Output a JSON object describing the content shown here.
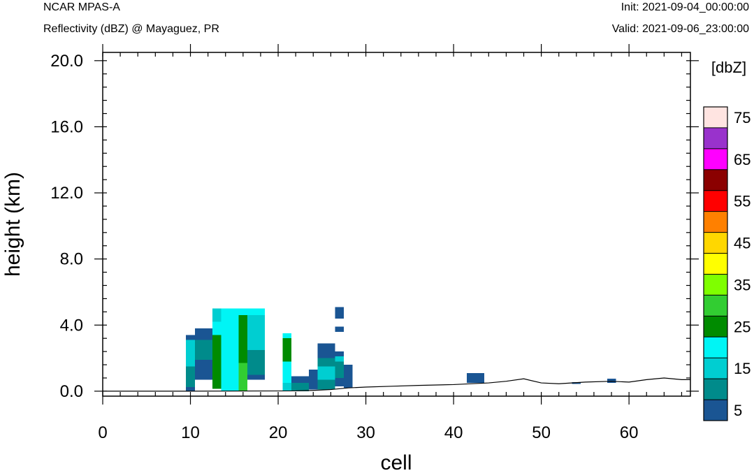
{
  "header": {
    "model": "NCAR MPAS-A",
    "field": "Reflectivity (dBZ) @ Mayaguez, PR",
    "init": "Init: 2021-09-04_00:00:00",
    "valid": "Valid: 2021-09-06_23:00:00"
  },
  "chart_data": {
    "type": "heatmap",
    "xlabel": "cell",
    "ylabel": "height (km)",
    "xlim": [
      0,
      67
    ],
    "ylim": [
      -0.3,
      20.5
    ],
    "xticks": [
      0,
      10,
      20,
      30,
      40,
      50,
      60
    ],
    "yticks": [
      0.0,
      4.0,
      8.0,
      12.0,
      16.0,
      20.0
    ],
    "ytick_labels": [
      "0.0",
      "4.0",
      "8.0",
      "12.0",
      "16.0",
      "20.0"
    ],
    "colorbar": {
      "title": "[dbZ]",
      "levels": [
        5,
        10,
        15,
        20,
        25,
        30,
        35,
        40,
        45,
        50,
        55,
        60,
        65,
        70,
        75
      ],
      "labels": [
        "5",
        "15",
        "25",
        "35",
        "45",
        "55",
        "65",
        "75"
      ],
      "colors": [
        "#1A5593",
        "#008B8B",
        "#00CED1",
        "#00F5F5",
        "#008B00",
        "#32CD32",
        "#7FFF00",
        "#FFFF00",
        "#FFD700",
        "#FF8000",
        "#FF0000",
        "#8B0000",
        "#FF00FF",
        "#9932CC",
        "#FFE4E1"
      ]
    },
    "cells": [
      {
        "x": [
          9.5,
          10.5
        ],
        "y": [
          0.0,
          0.25
        ],
        "dbz": 5
      },
      {
        "x": [
          9.5,
          10.5
        ],
        "y": [
          0.25,
          1.5
        ],
        "dbz": 10
      },
      {
        "x": [
          9.5,
          10.5
        ],
        "y": [
          1.5,
          3.1
        ],
        "dbz": 15
      },
      {
        "x": [
          9.5,
          10.5
        ],
        "y": [
          3.1,
          3.4
        ],
        "dbz": 5
      },
      {
        "x": [
          10.5,
          12.5
        ],
        "y": [
          0.7,
          1.9
        ],
        "dbz": 5
      },
      {
        "x": [
          10.5,
          12.5
        ],
        "y": [
          1.9,
          3.1
        ],
        "dbz": 10
      },
      {
        "x": [
          10.5,
          12.5
        ],
        "y": [
          3.1,
          3.8
        ],
        "dbz": 5
      },
      {
        "x": [
          12.5,
          13.5
        ],
        "y": [
          0.15,
          3.4
        ],
        "dbz": 25
      },
      {
        "x": [
          12.5,
          13.5
        ],
        "y": [
          3.4,
          4.2
        ],
        "dbz": 20
      },
      {
        "x": [
          12.5,
          13.5
        ],
        "y": [
          4.2,
          5.0
        ],
        "dbz": 15
      },
      {
        "x": [
          13.5,
          15.5
        ],
        "y": [
          0.0,
          5.0
        ],
        "dbz": 20
      },
      {
        "x": [
          15.5,
          16.5
        ],
        "y": [
          0.0,
          1.7
        ],
        "dbz": 30
      },
      {
        "x": [
          15.5,
          16.5
        ],
        "y": [
          1.7,
          4.6
        ],
        "dbz": 25
      },
      {
        "x": [
          15.5,
          16.5
        ],
        "y": [
          4.6,
          5.0
        ],
        "dbz": 20
      },
      {
        "x": [
          16.5,
          18.5
        ],
        "y": [
          0.7,
          1.0
        ],
        "dbz": 5
      },
      {
        "x": [
          16.5,
          18.5
        ],
        "y": [
          1.0,
          2.5
        ],
        "dbz": 10
      },
      {
        "x": [
          16.5,
          18.5
        ],
        "y": [
          2.5,
          4.6
        ],
        "dbz": 15
      },
      {
        "x": [
          16.5,
          18.5
        ],
        "y": [
          4.6,
          5.0
        ],
        "dbz": 20
      },
      {
        "x": [
          20.5,
          21.5
        ],
        "y": [
          0.0,
          0.5
        ],
        "dbz": 15
      },
      {
        "x": [
          20.5,
          21.5
        ],
        "y": [
          0.5,
          1.8
        ],
        "dbz": 20
      },
      {
        "x": [
          20.5,
          21.5
        ],
        "y": [
          1.8,
          3.2
        ],
        "dbz": 25
      },
      {
        "x": [
          20.5,
          21.5
        ],
        "y": [
          3.2,
          3.5
        ],
        "dbz": 20
      },
      {
        "x": [
          21.5,
          23.5
        ],
        "y": [
          0.0,
          0.5
        ],
        "dbz": 10
      },
      {
        "x": [
          21.5,
          23.5
        ],
        "y": [
          0.5,
          0.9
        ],
        "dbz": 5
      },
      {
        "x": [
          23.5,
          24.5
        ],
        "y": [
          0.1,
          1.3
        ],
        "dbz": 5
      },
      {
        "x": [
          24.5,
          26.5
        ],
        "y": [
          0.1,
          0.7
        ],
        "dbz": 10
      },
      {
        "x": [
          24.5,
          26.5
        ],
        "y": [
          0.7,
          1.5
        ],
        "dbz": 15
      },
      {
        "x": [
          24.5,
          26.5
        ],
        "y": [
          1.5,
          2.0
        ],
        "dbz": 10
      },
      {
        "x": [
          24.5,
          26.5
        ],
        "y": [
          2.0,
          2.9
        ],
        "dbz": 5
      },
      {
        "x": [
          26.5,
          27.5
        ],
        "y": [
          0.3,
          0.8
        ],
        "dbz": 5
      },
      {
        "x": [
          26.5,
          27.5
        ],
        "y": [
          0.8,
          1.8
        ],
        "dbz": 10
      },
      {
        "x": [
          26.5,
          27.5
        ],
        "y": [
          1.8,
          2.1
        ],
        "dbz": 15
      },
      {
        "x": [
          26.5,
          27.5
        ],
        "y": [
          2.1,
          2.4
        ],
        "dbz": 5
      },
      {
        "x": [
          26.5,
          27.5
        ],
        "y": [
          3.6,
          3.9
        ],
        "dbz": 5
      },
      {
        "x": [
          26.5,
          27.5
        ],
        "y": [
          4.4,
          5.1
        ],
        "dbz": 5
      },
      {
        "x": [
          27.5,
          28.5
        ],
        "y": [
          0.2,
          1.6
        ],
        "dbz": 5
      },
      {
        "x": [
          41.5,
          43.5
        ],
        "y": [
          0.5,
          1.1
        ],
        "dbz": 5
      },
      {
        "x": [
          53.5,
          54.5
        ],
        "y": [
          0.45,
          0.55
        ],
        "dbz": 5
      },
      {
        "x": [
          57.5,
          58.5
        ],
        "y": [
          0.5,
          0.75
        ],
        "dbz": 5
      }
    ],
    "terrain": {
      "x": [
        0,
        9.5,
        22,
        24,
        26,
        28,
        30,
        33,
        36,
        40,
        44,
        46,
        48,
        50,
        52,
        55,
        58,
        60,
        62,
        64,
        66,
        67
      ],
      "y": [
        0.0,
        0.0,
        0.02,
        0.05,
        0.1,
        0.2,
        0.25,
        0.3,
        0.35,
        0.4,
        0.5,
        0.6,
        0.75,
        0.5,
        0.45,
        0.55,
        0.6,
        0.55,
        0.7,
        0.8,
        0.7,
        0.7
      ]
    }
  }
}
